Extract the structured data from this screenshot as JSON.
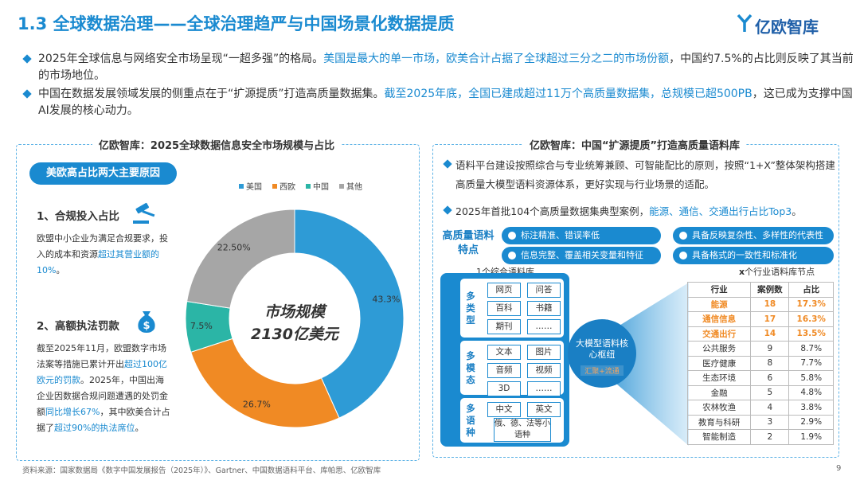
{
  "header": {
    "title": "1.3 全球数据治理——全球治理趋严与中国场景化数据提质",
    "logo": "亿欧智库"
  },
  "bullets": [
    {
      "segments": [
        {
          "text": "2025年全球信息与网络安全市场呈现“一超多强”的格局。",
          "highlight": false
        },
        {
          "text": "美国是最大的单一市场，欧美合计占据了全球超过三分之二的市场份额",
          "highlight": true
        },
        {
          "text": "，中国约7.5%的占比则反映了其当前的市场地位。",
          "highlight": false
        }
      ]
    },
    {
      "segments": [
        {
          "text": "中国在数据发展领域发展的侧重点在于“扩源提质”打造高质量数据集。",
          "highlight": false
        },
        {
          "text": "截至2025年底，全国已建成超过11万个高质量数据集，总规模已超500PB",
          "highlight": true
        },
        {
          "text": "，这已成为支撑中国AI发展的核心动力。",
          "highlight": false
        }
      ]
    }
  ],
  "left_panel": {
    "title": "亿欧智库：2025全球数据信息安全市场规模与占比",
    "badge": "美欧高占比两大主要原因",
    "reasons": [
      {
        "heading": "1、合规投入占比",
        "segments": [
          {
            "text": "欧盟中小企业为满足合规要求，投入的成本和资源",
            "highlight": false
          },
          {
            "text": "超过其营业额的10%",
            "highlight": true
          },
          {
            "text": "。",
            "highlight": false
          }
        ]
      },
      {
        "heading": "2、高额执法罚款",
        "segments": [
          {
            "text": "截至2025年11月，欧盟数字市场法案等措施已累计开出",
            "highlight": false
          },
          {
            "text": "超过100亿欧元的罚款",
            "highlight": true
          },
          {
            "text": "。2025年，中国出海企业因数据合规问题遭遇的处罚金额",
            "highlight": false
          },
          {
            "text": "同比增长67%",
            "highlight": true
          },
          {
            "text": "，其中欧美合计占据了",
            "highlight": false
          },
          {
            "text": "超过90%的执法席位",
            "highlight": true
          },
          {
            "text": "。",
            "highlight": false
          }
        ]
      }
    ]
  },
  "chart_data": {
    "type": "donut",
    "center_label": [
      "市场规模",
      "2130亿美元"
    ],
    "categories": [
      "美国",
      "西欧",
      "中国",
      "其他"
    ],
    "values": [
      43.3,
      26.7,
      7.5,
      22.5
    ],
    "value_labels": [
      "43.3%",
      "26.7%",
      "7.5%",
      "22.50%"
    ],
    "colors": [
      "#2e9bd6",
      "#f08a24",
      "#2bb5a6",
      "#a6a6a6"
    ],
    "legend": "top"
  },
  "right_panel": {
    "title": "亿欧智库：中国“扩源提质”打造高质量语料库",
    "bullets": [
      {
        "segments": [
          {
            "text": "语料平台建设按照综合与专业统筹兼顾、可智能配比的原则，按照“1+X”整体架构搭建高质量大模型语料资源体系，更好实现与行业场景的适配。",
            "highlight": false
          }
        ]
      },
      {
        "segments": [
          {
            "text": "2025年首批104个高质量数据集典型案例，",
            "highlight": false
          },
          {
            "text": "能源、通信、交通出行占比Top3",
            "highlight": true
          },
          {
            "text": "。",
            "highlight": false
          }
        ]
      }
    ],
    "features_label": "高质量语料特点",
    "features": [
      "标注精准、错误率低",
      "具备反映复杂性、多样性的代表性",
      "信息完整、覆盖相关变量和特征",
      "具备格式的一致性和标准化"
    ],
    "left_caption": "1个综合语料库",
    "right_caption_x": "x",
    "right_caption": "个行业语料库节点",
    "groups": [
      {
        "label": "多类型",
        "items": [
          "网页",
          "问答",
          "百科",
          "书籍",
          "期刊",
          "……"
        ]
      },
      {
        "label": "多模态",
        "items": [
          "文本",
          "图片",
          "音频",
          "视频",
          "3D",
          "……"
        ]
      },
      {
        "label": "多语种",
        "items": [
          "中文",
          "英文",
          "俄、德、法等小语种"
        ]
      }
    ],
    "hub": "大模型语料核心枢纽",
    "hub_sub": "汇聚+流通",
    "table": {
      "header": [
        "行业",
        "案例数",
        "占比"
      ],
      "rows": [
        {
          "cells": [
            "能源",
            "18",
            "17.3%"
          ],
          "highlight": true
        },
        {
          "cells": [
            "通信信息",
            "17",
            "16.3%"
          ],
          "highlight": true
        },
        {
          "cells": [
            "交通出行",
            "14",
            "13.5%"
          ],
          "highlight": true
        },
        {
          "cells": [
            "公共服务",
            "9",
            "8.7%"
          ],
          "highlight": false
        },
        {
          "cells": [
            "医疗健康",
            "8",
            "7.7%"
          ],
          "highlight": false
        },
        {
          "cells": [
            "生态环境",
            "6",
            "5.8%"
          ],
          "highlight": false
        },
        {
          "cells": [
            "金融",
            "5",
            "4.8%"
          ],
          "highlight": false
        },
        {
          "cells": [
            "农林牧渔",
            "4",
            "3.8%"
          ],
          "highlight": false
        },
        {
          "cells": [
            "教育与科研",
            "3",
            "2.9%"
          ],
          "highlight": false
        },
        {
          "cells": [
            "智能制造",
            "2",
            "1.9%"
          ],
          "highlight": false
        }
      ]
    }
  },
  "footer": {
    "source": "资料来源：国家数据局《数字中国发展报告（2025年）》、Gartner、中国数据语料平台、库帕思、亿欧智库",
    "page": "9"
  }
}
